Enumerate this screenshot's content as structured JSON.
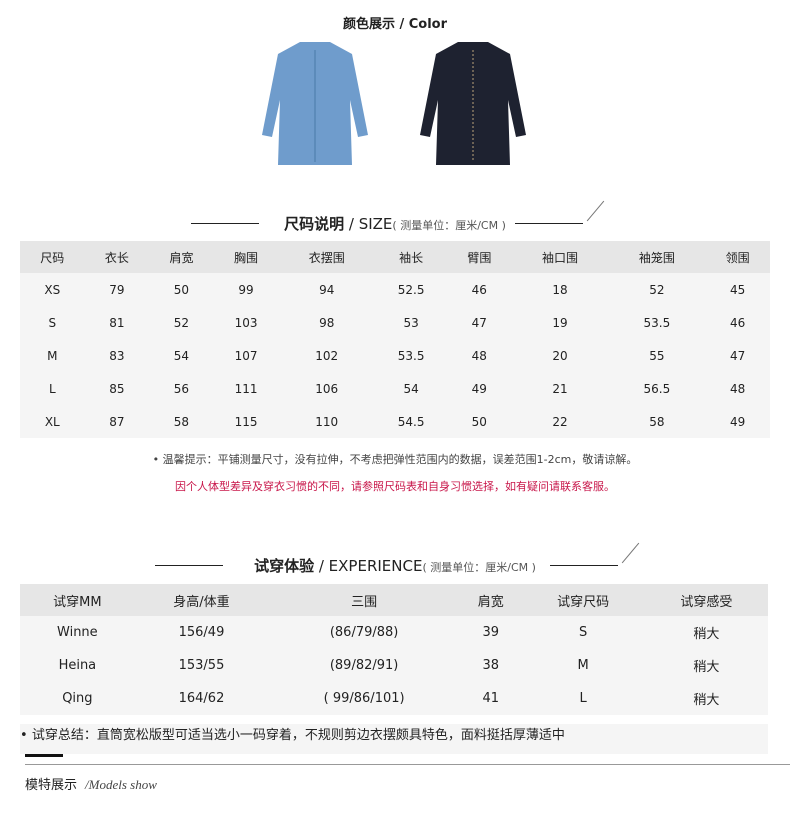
{
  "color_section": {
    "title": "颜色展示 / Color",
    "items": [
      {
        "color": "#6f9ccc"
      },
      {
        "color": "#1e2230"
      }
    ]
  },
  "size_section": {
    "title_cn": "尺码说明",
    "title_en": " / SIZE",
    "unit": "( 测量单位：厘米/CM )",
    "headers": [
      "尺码",
      "衣长",
      "肩宽",
      "胸围",
      "衣摆围",
      "袖长",
      "臂围",
      "袖口围",
      "袖笼围",
      "领围"
    ],
    "rows": [
      [
        "XS",
        "79",
        "50",
        "99",
        "94",
        "52.5",
        "46",
        "18",
        "52",
        "45"
      ],
      [
        "S",
        "81",
        "52",
        "103",
        "98",
        "53",
        "47",
        "19",
        "53.5",
        "46"
      ],
      [
        "M",
        "83",
        "54",
        "107",
        "102",
        "53.5",
        "48",
        "20",
        "55",
        "47"
      ],
      [
        "L",
        "85",
        "56",
        "111",
        "106",
        "54",
        "49",
        "21",
        "56.5",
        "48"
      ],
      [
        "XL",
        "87",
        "58",
        "115",
        "110",
        "54.5",
        "50",
        "22",
        "58",
        "49"
      ]
    ],
    "note": "温馨提示：平铺测量尺寸，没有拉伸，不考虑把弹性范围内的数据，误差范围1-2cm，敬请谅解。",
    "warning": "因个人体型差异及穿衣习惯的不同，请参照尺码表和自身习惯选择，如有疑问请联系客服。"
  },
  "experience_section": {
    "title_cn": "试穿体验",
    "title_en": " / EXPERIENCE",
    "unit": "( 测量单位：厘米/CM )",
    "headers": [
      "试穿MM",
      "身高/体重",
      "三围",
      "肩宽",
      "试穿尺码",
      "试穿感受"
    ],
    "rows": [
      [
        "Winne",
        "156/49",
        "(86/79/88)",
        "39",
        "S",
        "稍大"
      ],
      [
        "Heina",
        "153/55",
        "(89/82/91)",
        "38",
        "M",
        "稍大"
      ],
      [
        "Qing",
        "164/62",
        "( 99/86/101)",
        "41",
        "L",
        "稍大"
      ]
    ],
    "summary": "试穿总结：直筒宽松版型可适当选小一码穿着，不规则剪边衣摆颇具特色，面料挺括厚薄适中"
  },
  "models": {
    "title": "模特展示",
    "subtitle": "/Models show"
  }
}
